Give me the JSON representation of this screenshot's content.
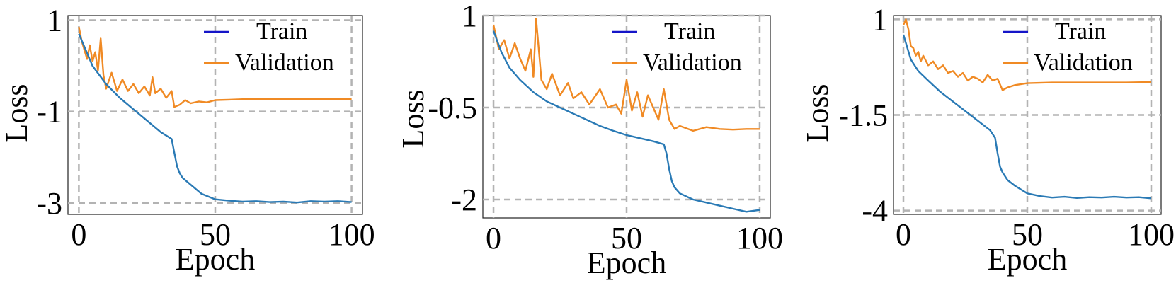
{
  "chart_data": [
    {
      "type": "line",
      "xlabel": "Epoch",
      "ylabel": "Loss",
      "xlim": [
        -4,
        104
      ],
      "ylim": [
        -3.25,
        1.1
      ],
      "xticks": [
        0,
        50,
        100
      ],
      "xtick_labels": [
        "0",
        "50",
        "100"
      ],
      "yticks": [
        -3,
        -1,
        1
      ],
      "ytick_labels": [
        "-3",
        "-1",
        "1"
      ],
      "grid": true,
      "legend_position": "top-right",
      "series": [
        {
          "name": "Train",
          "legend_color": "#1515c8",
          "color": "#2a7ab5",
          "x": [
            0,
            5,
            10,
            15,
            20,
            25,
            30,
            34,
            35,
            36,
            37,
            38,
            40,
            45,
            50,
            55,
            60,
            65,
            70,
            75,
            80,
            85,
            90,
            95,
            100
          ],
          "y": [
            0.7,
            0.0,
            -0.4,
            -0.7,
            -0.95,
            -1.2,
            -1.45,
            -1.6,
            -1.9,
            -2.2,
            -2.35,
            -2.45,
            -2.55,
            -2.8,
            -2.92,
            -2.95,
            -2.97,
            -2.96,
            -2.98,
            -2.97,
            -2.99,
            -2.96,
            -2.97,
            -2.96,
            -2.98
          ]
        },
        {
          "name": "Validation",
          "legend_color": "#f08a24",
          "color": "#f08a24",
          "x": [
            0,
            1,
            2,
            3,
            4,
            5,
            6,
            7,
            8,
            9,
            10,
            12,
            14,
            16,
            18,
            20,
            22,
            24,
            26,
            27,
            28,
            30,
            32,
            34,
            35,
            37,
            39,
            41,
            44,
            47,
            50,
            55,
            60,
            70,
            80,
            90,
            100
          ],
          "y": [
            0.85,
            0.55,
            0.35,
            0.15,
            0.45,
            0.1,
            0.3,
            -0.1,
            0.6,
            -0.2,
            -0.5,
            -0.15,
            -0.55,
            -0.3,
            -0.55,
            -0.4,
            -0.6,
            -0.45,
            -0.65,
            -0.25,
            -0.6,
            -0.5,
            -0.7,
            -0.55,
            -0.9,
            -0.85,
            -0.75,
            -0.82,
            -0.78,
            -0.8,
            -0.75,
            -0.74,
            -0.73,
            -0.73,
            -0.73,
            -0.73,
            -0.73
          ]
        }
      ]
    },
    {
      "type": "line",
      "xlabel": "Epoch",
      "ylabel": "Loss",
      "xlim": [
        -4,
        104
      ],
      "ylim": [
        -2.3,
        1.0
      ],
      "xticks": [
        0,
        50,
        100
      ],
      "xtick_labels": [
        "0",
        "50",
        "100"
      ],
      "yticks": [
        -2,
        -0.5,
        1
      ],
      "ytick_labels": [
        "-2",
        "-0.5",
        "1"
      ],
      "grid": true,
      "legend_position": "top-right",
      "series": [
        {
          "name": "Train",
          "legend_color": "#1515c8",
          "color": "#2a7ab5",
          "x": [
            0,
            3,
            6,
            10,
            15,
            20,
            25,
            30,
            35,
            40,
            45,
            50,
            55,
            60,
            64,
            65,
            66,
            67,
            68,
            70,
            75,
            80,
            85,
            90,
            95,
            100
          ],
          "y": [
            0.75,
            0.4,
            0.15,
            -0.05,
            -0.25,
            -0.4,
            -0.5,
            -0.6,
            -0.7,
            -0.8,
            -0.88,
            -0.95,
            -1.0,
            -1.05,
            -1.1,
            -1.25,
            -1.5,
            -1.7,
            -1.8,
            -1.9,
            -2.0,
            -2.05,
            -2.1,
            -2.15,
            -2.2,
            -2.17
          ]
        },
        {
          "name": "Validation",
          "legend_color": "#f08a24",
          "color": "#f08a24",
          "x": [
            0,
            2,
            4,
            6,
            8,
            10,
            12,
            14,
            15,
            16,
            18,
            20,
            22,
            25,
            28,
            30,
            33,
            36,
            40,
            43,
            46,
            48,
            50,
            52,
            54,
            56,
            58,
            60,
            62,
            64,
            66,
            68,
            70,
            75,
            80,
            85,
            90,
            95,
            100
          ],
          "y": [
            0.85,
            0.45,
            0.6,
            0.3,
            0.55,
            0.3,
            0.1,
            0.45,
            0.0,
            0.95,
            -0.05,
            -0.2,
            0.05,
            -0.3,
            -0.1,
            -0.35,
            -0.25,
            -0.45,
            -0.2,
            -0.5,
            -0.45,
            -0.6,
            -0.05,
            -0.55,
            -0.25,
            -0.65,
            -0.3,
            -0.5,
            -0.7,
            -0.2,
            -0.7,
            -0.85,
            -0.8,
            -0.88,
            -0.82,
            -0.85,
            -0.86,
            -0.85,
            -0.85
          ]
        }
      ]
    },
    {
      "type": "line",
      "xlabel": "Epoch",
      "ylabel": "Loss",
      "xlim": [
        -4,
        104
      ],
      "ylim": [
        -4.1,
        1.1
      ],
      "xticks": [
        0,
        50,
        100
      ],
      "xtick_labels": [
        "0",
        "50",
        "100"
      ],
      "yticks": [
        -4,
        -1.5,
        1
      ],
      "ytick_labels": [
        "-4",
        "-1.5",
        "1"
      ],
      "grid": true,
      "legend_position": "top-right",
      "series": [
        {
          "name": "Train",
          "legend_color": "#1515c8",
          "color": "#2a7ab5",
          "x": [
            0,
            3,
            6,
            10,
            15,
            20,
            25,
            30,
            35,
            37,
            38,
            39,
            40,
            42,
            45,
            50,
            55,
            60,
            65,
            70,
            75,
            80,
            85,
            90,
            95,
            100
          ],
          "y": [
            0.6,
            -0.05,
            -0.35,
            -0.6,
            -0.9,
            -1.15,
            -1.4,
            -1.65,
            -1.9,
            -2.1,
            -2.5,
            -2.85,
            -3.0,
            -3.2,
            -3.35,
            -3.55,
            -3.62,
            -3.66,
            -3.64,
            -3.67,
            -3.65,
            -3.66,
            -3.64,
            -3.66,
            -3.65,
            -3.68
          ]
        },
        {
          "name": "Validation",
          "legend_color": "#f08a24",
          "color": "#f08a24",
          "x": [
            0,
            1,
            2,
            3,
            4,
            5,
            6,
            7,
            8,
            10,
            12,
            14,
            16,
            18,
            20,
            22,
            24,
            26,
            28,
            30,
            32,
            34,
            36,
            38,
            39,
            40,
            42,
            45,
            50,
            55,
            60,
            70,
            80,
            90,
            100
          ],
          "y": [
            0.85,
            1.0,
            0.75,
            0.3,
            0.25,
            0.05,
            0.15,
            -0.1,
            0.05,
            -0.2,
            -0.1,
            -0.3,
            -0.2,
            -0.4,
            -0.35,
            -0.5,
            -0.4,
            -0.6,
            -0.5,
            -0.55,
            -0.65,
            -0.45,
            -0.6,
            -0.55,
            -0.7,
            -0.85,
            -0.78,
            -0.72,
            -0.67,
            -0.66,
            -0.65,
            -0.65,
            -0.65,
            -0.65,
            -0.64
          ]
        }
      ]
    }
  ]
}
